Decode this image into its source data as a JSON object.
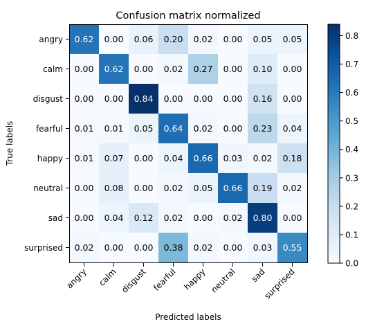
{
  "chart_data": {
    "type": "heatmap",
    "title": "Confusion matrix normalized",
    "xlabel": "Predicted labels",
    "ylabel": "True labels",
    "x_categories": [
      "angry",
      "calm",
      "disgust",
      "fearful",
      "happy",
      "neutral",
      "sad",
      "surprised"
    ],
    "y_categories": [
      "angry",
      "calm",
      "disgust",
      "fearful",
      "happy",
      "neutral",
      "sad",
      "surprised"
    ],
    "values": [
      [
        0.62,
        0.0,
        0.06,
        0.2,
        0.02,
        0.0,
        0.05,
        0.05
      ],
      [
        0.0,
        0.62,
        0.0,
        0.02,
        0.27,
        0.0,
        0.1,
        0.0
      ],
      [
        0.0,
        0.0,
        0.84,
        0.0,
        0.0,
        0.0,
        0.16,
        0.0
      ],
      [
        0.01,
        0.01,
        0.05,
        0.64,
        0.02,
        0.0,
        0.23,
        0.04
      ],
      [
        0.01,
        0.07,
        0.0,
        0.04,
        0.66,
        0.03,
        0.02,
        0.18
      ],
      [
        0.0,
        0.08,
        0.0,
        0.02,
        0.05,
        0.66,
        0.19,
        0.02
      ],
      [
        0.0,
        0.04,
        0.12,
        0.02,
        0.0,
        0.02,
        0.8,
        0.0
      ],
      [
        0.02,
        0.0,
        0.0,
        0.38,
        0.02,
        0.0,
        0.03,
        0.55
      ]
    ],
    "colormap": "Blues",
    "color_range": [
      0.0,
      0.84
    ],
    "colorbar_ticks": [
      0.0,
      0.1,
      0.2,
      0.3,
      0.4,
      0.5,
      0.6,
      0.7,
      0.8
    ],
    "grid": false
  }
}
